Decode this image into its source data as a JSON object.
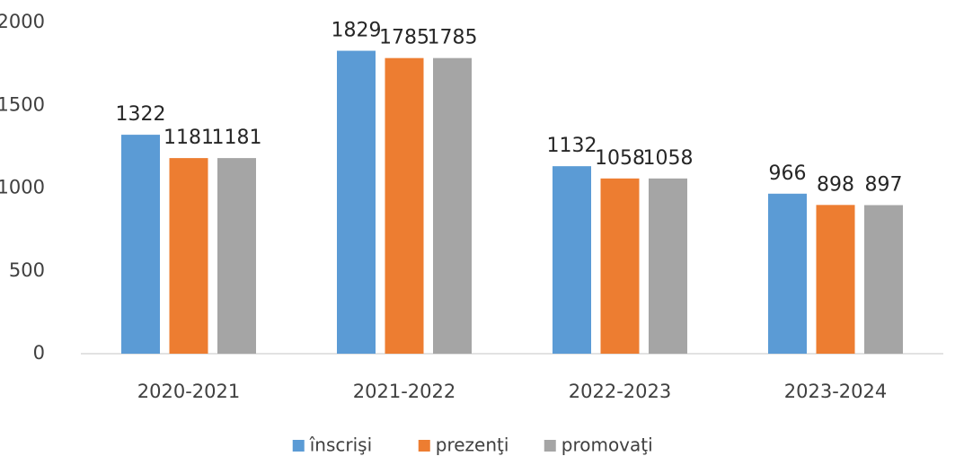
{
  "chart_data": {
    "type": "bar",
    "categories": [
      "2020-2021",
      "2021-2022",
      "2022-2023",
      "2023-2024"
    ],
    "series": [
      {
        "name": "înscrişi",
        "color": "#5b9bd5",
        "values": [
          1322,
          1829,
          1132,
          966
        ]
      },
      {
        "name": "prezenţi",
        "color": "#ed7d31",
        "values": [
          1181,
          1785,
          1058,
          898
        ]
      },
      {
        "name": "promovaţi",
        "color": "#a5a5a5",
        "values": [
          1181,
          1785,
          1058,
          897
        ]
      }
    ],
    "ylim": [
      0,
      2000
    ],
    "yticks": [
      0,
      500,
      1000,
      1500,
      2000
    ],
    "grid": false,
    "legend": "bottom"
  }
}
